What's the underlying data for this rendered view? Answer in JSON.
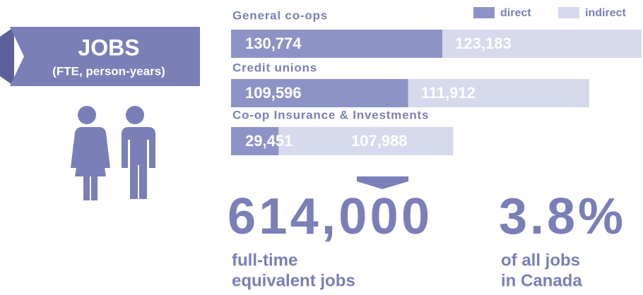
{
  "header": {
    "title": "JOBS",
    "subtitle": "(FTE, person-years)"
  },
  "chart_data": {
    "type": "bar",
    "orientation": "horizontal",
    "stacked": true,
    "categories": [
      "General co-ops",
      "Credit unions",
      "Co-op Insurance & Investments"
    ],
    "series": [
      {
        "name": "direct",
        "color": "#8e93c7",
        "values": [
          130774,
          109596,
          29451
        ],
        "value_labels": [
          "130,774",
          "109,596",
          "29,451"
        ]
      },
      {
        "name": "indirect",
        "color": "#d7d9ec",
        "values": [
          123183,
          111912,
          107988
        ],
        "value_labels": [
          "123,183",
          "111,912",
          "107,988"
        ]
      }
    ]
  },
  "summary": {
    "total": "614,000",
    "total_caption": [
      "full-time",
      "equivalent jobs"
    ],
    "share": "3.8%",
    "share_caption": [
      "of all jobs",
      "in Canada"
    ]
  }
}
